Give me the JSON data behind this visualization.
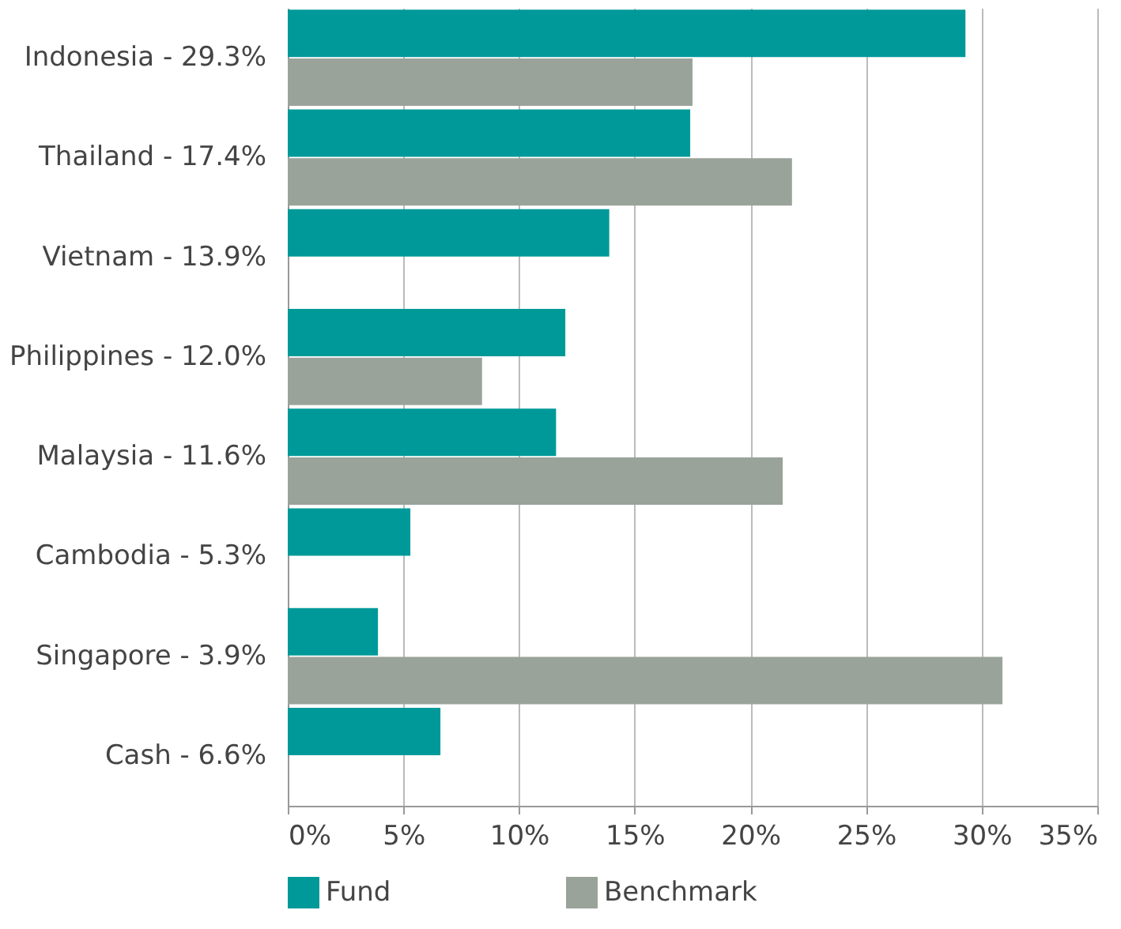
{
  "chart_data": {
    "type": "bar",
    "orientation": "horizontal",
    "categories": [
      "Indonesia - 29.3%",
      "Thailand - 17.4%",
      "Vietnam - 13.9%",
      "Philippines - 12.0%",
      "Malaysia - 11.6%",
      "Cambodia - 5.3%",
      "Singapore - 3.9%",
      "Cash - 6.6%"
    ],
    "series": [
      {
        "name": "Fund",
        "color": "#009999",
        "values": [
          29.3,
          17.4,
          13.9,
          12.0,
          11.6,
          5.3,
          3.9,
          6.6
        ]
      },
      {
        "name": "Benchmark",
        "color": "#9aa39a",
        "values": [
          17.5,
          21.8,
          null,
          8.4,
          21.4,
          null,
          30.9,
          null
        ]
      }
    ],
    "xlim": [
      0,
      35
    ],
    "xticks": [
      {
        "value": 0,
        "label": "0%"
      },
      {
        "value": 5,
        "label": "5%"
      },
      {
        "value": 10,
        "label": "10%"
      },
      {
        "value": 15,
        "label": "15%"
      },
      {
        "value": 20,
        "label": "20%"
      },
      {
        "value": 25,
        "label": "25%"
      },
      {
        "value": 30,
        "label": "30%"
      },
      {
        "value": 35,
        "label": "35%"
      }
    ],
    "grid": "x",
    "legend": "bottom"
  }
}
